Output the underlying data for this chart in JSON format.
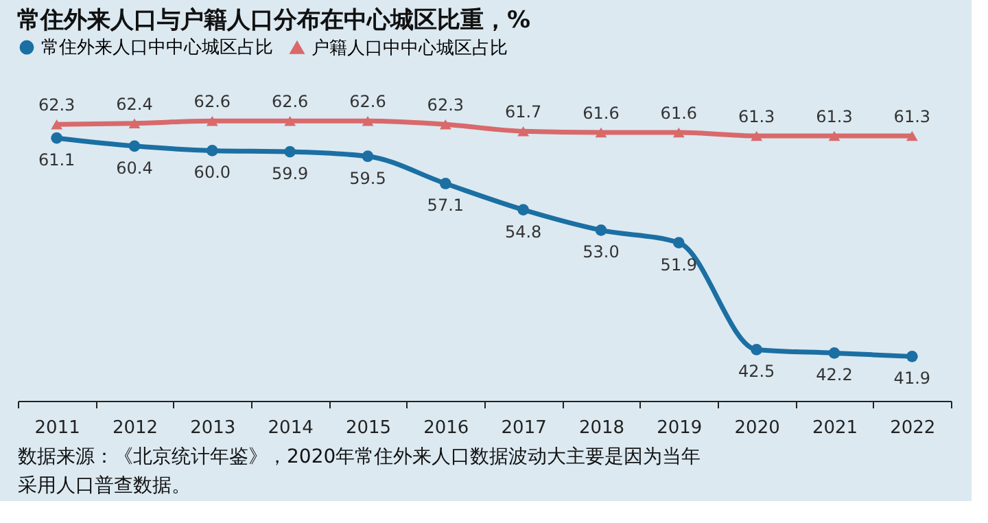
{
  "chart_data": {
    "type": "line",
    "title": "常住外来人口与户籍人口分布在中心城区比重，%",
    "categories": [
      "2011",
      "2012",
      "2013",
      "2014",
      "2015",
      "2016",
      "2017",
      "2018",
      "2019",
      "2020",
      "2021",
      "2022"
    ],
    "series": [
      {
        "name": "常住外来人口中中心城区占比",
        "color": "#1b6fa3",
        "marker": "circle",
        "values": [
          61.1,
          60.4,
          60.0,
          59.9,
          59.5,
          57.1,
          54.8,
          53.0,
          51.9,
          42.5,
          42.2,
          41.9
        ],
        "value_labels": [
          "61.1",
          "60.4",
          "60.0",
          "59.9",
          "59.5",
          "57.1",
          "54.8",
          "53.0",
          "51.9",
          "42.5",
          "42.2",
          "41.9"
        ]
      },
      {
        "name": "户籍人口中中心城区占比",
        "color": "#d9696a",
        "marker": "triangle",
        "values": [
          62.3,
          62.4,
          62.6,
          62.6,
          62.6,
          62.3,
          61.7,
          61.6,
          61.6,
          61.3,
          61.3,
          61.3
        ]
      }
    ],
    "data_labels": true,
    "legend": "top",
    "grid": false,
    "tick_labels": "x",
    "annotations": [
      "数据来源：《北京统计年鉴》，2020年常住外来人口数据波动大主要是因为当年采用人口普查数据。"
    ]
  }
}
